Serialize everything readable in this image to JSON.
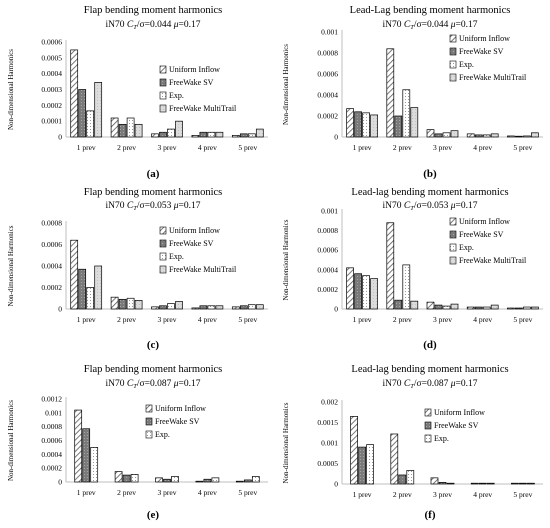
{
  "figure": {
    "panel_labels": [
      "(a)",
      "(b)",
      "(c)",
      "(d)",
      "(e)",
      "(f)"
    ]
  },
  "chart_data": [
    {
      "type": "bar",
      "title": "Flap bending moment  harmonics",
      "subtitle": {
        "pre": "iN70 ",
        "c": "C",
        "sub": "T",
        "mid": "/σ=0.044 ",
        "mu": "μ",
        "post": "=0.17"
      },
      "ylabel": "Non-dimensional Harmonics",
      "categories": [
        "1 prev",
        "2 prev",
        "3 prev",
        "4 prev",
        "5 prev"
      ],
      "ylim": [
        0,
        0.0006
      ],
      "yticks": [
        0,
        0.0001,
        0.0002,
        0.0003,
        0.0004,
        0.0005,
        0.0006
      ],
      "ytick_labels": [
        "0",
        "0.0001",
        "0.0002",
        "0.0003",
        "0.0004",
        "0.0005",
        "0.0006"
      ],
      "series": [
        {
          "name": "Uniform Inflow",
          "pattern": "hatch",
          "values": [
            0.00055,
            0.00012,
            2e-05,
            1e-05,
            1e-05
          ]
        },
        {
          "name": "FreeWake SV",
          "pattern": "grey",
          "values": [
            0.0003,
            8e-05,
            3e-05,
            3e-05,
            2e-05
          ]
        },
        {
          "name": "Exp.",
          "pattern": "dots",
          "values": [
            0.000165,
            0.00012,
            5e-05,
            3e-05,
            2e-05
          ]
        },
        {
          "name": "FreeWake MultiTrail",
          "pattern": "light",
          "values": [
            0.000345,
            8e-05,
            0.0001,
            3e-05,
            5e-05
          ]
        }
      ]
    },
    {
      "type": "bar",
      "title": "Lead-Lag bending moment  harmonics",
      "subtitle": {
        "pre": "iN70 ",
        "c": "C",
        "sub": "T",
        "mid": "/σ=0.044 ",
        "mu": "μ",
        "post": "=0.17"
      },
      "ylabel": "Non-dimensional Harmonics",
      "categories": [
        "1 prev",
        "2 prev",
        "3 prev",
        "4 prev",
        "5 prev"
      ],
      "ylim": [
        0,
        0.001
      ],
      "yticks": [
        0,
        0.0002,
        0.0004,
        0.0006,
        0.0008,
        0.001
      ],
      "ytick_labels": [
        "0",
        "0.0002",
        "0.0004",
        "0.0006",
        "0.0008",
        "0.001"
      ],
      "series": [
        {
          "name": "Uniform Inflow",
          "pattern": "hatch",
          "values": [
            0.00027,
            0.00084,
            7e-05,
            3e-05,
            1e-05
          ]
        },
        {
          "name": "FreeWake SV",
          "pattern": "grey",
          "values": [
            0.00024,
            0.0002,
            3e-05,
            2e-05,
            5e-06
          ]
        },
        {
          "name": "Exp.",
          "pattern": "dots",
          "values": [
            0.00023,
            0.00045,
            4e-05,
            2e-05,
            1e-05
          ]
        },
        {
          "name": "FreeWake MultiTrail",
          "pattern": "light",
          "values": [
            0.00021,
            0.00028,
            6e-05,
            3e-05,
            4e-05
          ]
        }
      ]
    },
    {
      "type": "bar",
      "title": "Flap bending moment  harmonics",
      "subtitle": {
        "pre": "iN70 ",
        "c": "C",
        "sub": "T",
        "mid": "/σ=0.053 ",
        "mu": "μ",
        "post": "=0.17"
      },
      "ylabel": "Non-dimensional Harmonics",
      "categories": [
        "1 prev",
        "2 prev",
        "3 prev",
        "4 prev",
        "5 prev"
      ],
      "ylim": [
        0,
        0.0008
      ],
      "yticks": [
        0,
        0.0002,
        0.0004,
        0.0006,
        0.0008
      ],
      "ytick_labels": [
        "0",
        "0.0002",
        "0.0004",
        "0.0006",
        "0.0008"
      ],
      "series": [
        {
          "name": "Uniform Inflow",
          "pattern": "hatch",
          "values": [
            0.00064,
            0.00011,
            2e-05,
            1e-05,
            2e-05
          ]
        },
        {
          "name": "FreeWake SV",
          "pattern": "grey",
          "values": [
            0.00037,
            9e-05,
            3e-05,
            3e-05,
            3e-05
          ]
        },
        {
          "name": "Exp.",
          "pattern": "dots",
          "values": [
            0.0002,
            0.0001,
            5e-05,
            3e-05,
            4e-05
          ]
        },
        {
          "name": "FreeWake MultiTrail",
          "pattern": "light",
          "values": [
            0.0004,
            8e-05,
            7e-05,
            3e-05,
            4e-05
          ]
        }
      ]
    },
    {
      "type": "bar",
      "title": "Lead-lag bending moment  harmonics",
      "subtitle": {
        "pre": "iN70 ",
        "c": "C",
        "sub": "T",
        "mid": "/σ=0.053 ",
        "mu": "μ",
        "post": "=0.17"
      },
      "ylabel": "Non-dimensional Harmonics",
      "categories": [
        "1 prev",
        "2 prev",
        "3 prev",
        "4 prev",
        "5 prev"
      ],
      "ylim": [
        0,
        0.001
      ],
      "yticks": [
        0,
        0.0002,
        0.0004,
        0.0006,
        0.0008,
        0.001
      ],
      "ytick_labels": [
        "0",
        "0.0002",
        "0.0004",
        "0.0006",
        "0.0008",
        "0.001"
      ],
      "series": [
        {
          "name": "Uniform Inflow",
          "pattern": "hatch",
          "values": [
            0.00042,
            0.00088,
            7e-05,
            2e-05,
            1e-05
          ]
        },
        {
          "name": "FreeWake SV",
          "pattern": "grey",
          "values": [
            0.00036,
            9e-05,
            4e-05,
            2e-05,
            1e-05
          ]
        },
        {
          "name": "Exp.",
          "pattern": "dots",
          "values": [
            0.00034,
            0.00045,
            3e-05,
            2e-05,
            2e-05
          ]
        },
        {
          "name": "FreeWake MultiTrail",
          "pattern": "light",
          "values": [
            0.00031,
            8e-05,
            5e-05,
            4e-05,
            2e-05
          ]
        }
      ]
    },
    {
      "type": "bar",
      "title": "Flap bending moment  harmonics",
      "subtitle": {
        "pre": "iN70 ",
        "c": "C",
        "sub": "T",
        "mid": "/σ=0.087 ",
        "mu": "μ",
        "post": "=0.17"
      },
      "ylabel": "Non-dimensional Harmonics",
      "categories": [
        "1 prev",
        "2 prev",
        "3 prev",
        "4 prev",
        "5 prev"
      ],
      "ylim": [
        0,
        0.0012
      ],
      "yticks": [
        0,
        0.0002,
        0.0004,
        0.0006,
        0.0008,
        0.001,
        0.0012
      ],
      "ytick_labels": [
        "0",
        "0.0002",
        "0.0004",
        "0.0006",
        "0.0008",
        "0.001",
        "0.0012"
      ],
      "series": [
        {
          "name": "Uniform Inflow",
          "pattern": "hatch",
          "values": [
            0.00104,
            0.00015,
            6e-05,
            1e-05,
            1e-05
          ]
        },
        {
          "name": "FreeWake SV",
          "pattern": "grey",
          "values": [
            0.00077,
            0.0001,
            4e-05,
            4e-05,
            3e-05
          ]
        },
        {
          "name": "Exp.",
          "pattern": "dots",
          "values": [
            0.0005,
            0.00011,
            8e-05,
            6e-05,
            8e-05
          ]
        }
      ]
    },
    {
      "type": "bar",
      "title": "Lead-lag bending moment  harmonics",
      "subtitle": {
        "pre": "iN70 ",
        "c": "C",
        "sub": "T",
        "mid": "/σ=0.087 ",
        "mu": "μ",
        "post": "=0.17"
      },
      "ylabel": "Non-dimensional Harmonics",
      "categories": [
        "1 prev",
        "2 prev",
        "3 prev",
        "4 prev",
        "5 prev"
      ],
      "ylim": [
        0,
        0.002
      ],
      "yticks": [
        0,
        0.0005,
        0.001,
        0.0015,
        0.002
      ],
      "ytick_labels": [
        "0",
        "0.0005",
        "0.001",
        "0.0015",
        "0.002"
      ],
      "series": [
        {
          "name": "Uniform Inflow",
          "pattern": "hatch",
          "values": [
            0.00165,
            0.00122,
            0.00015,
            1e-05,
            1e-05
          ]
        },
        {
          "name": "FreeWake SV",
          "pattern": "grey",
          "values": [
            0.0009,
            0.00022,
            4e-05,
            5e-06,
            5e-06
          ]
        },
        {
          "name": "Exp.",
          "pattern": "dots",
          "values": [
            0.00096,
            0.00033,
            1e-05,
            5e-06,
            5e-06
          ]
        }
      ]
    }
  ]
}
